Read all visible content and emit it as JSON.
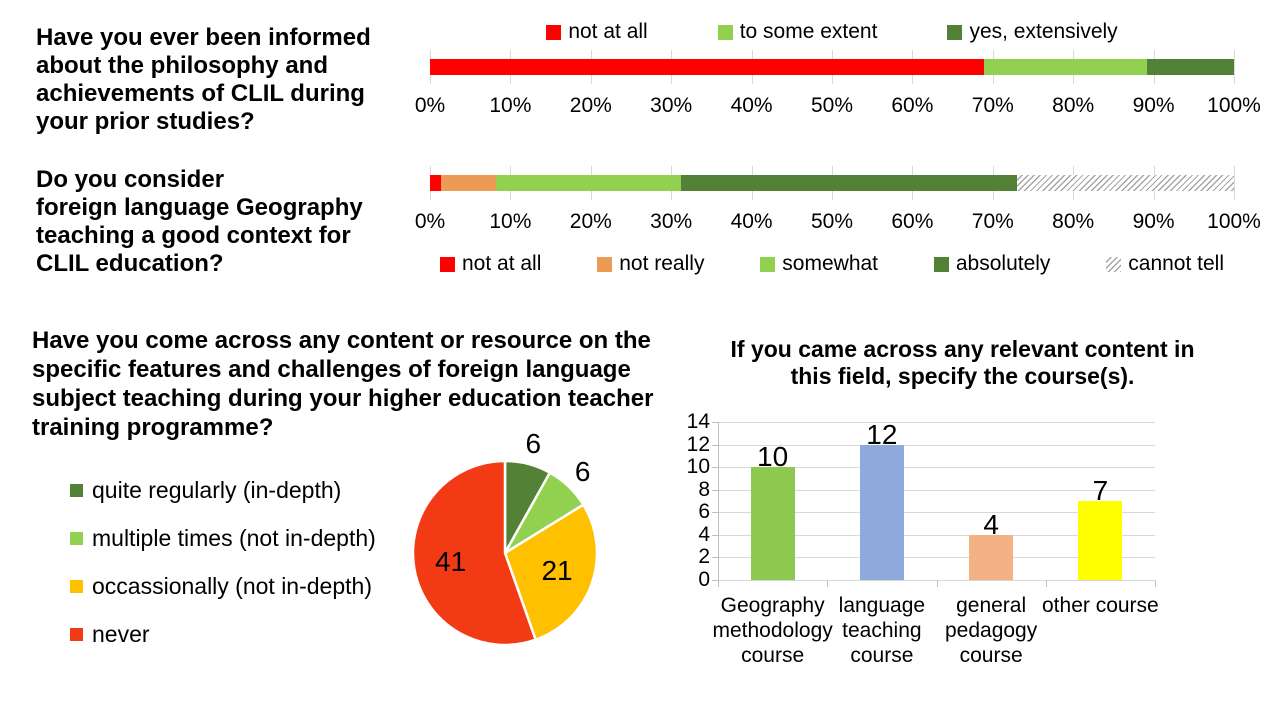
{
  "slide": {
    "questions": {
      "q1": "Have you ever been informed\nabout the philosophy and\nachievements of CLIL during\nyour prior studies?",
      "q2": "Do you consider\nforeign language Geography\nteaching a good context for\nCLIL education?",
      "q3": "Have you come across any content or resource on the\nspecific features and challenges of foreign language\nsubject teaching during your higher education teacher\ntraining programme?"
    }
  },
  "palette": {
    "red": "#fe0000",
    "orange": "#ed9b54",
    "light_green": "#92d050",
    "dark_green": "#538135",
    "gold": "#ffc000",
    "red_orange": "#f23b14",
    "bar_green": "#8dc94f",
    "bar_blue": "#8ea9db",
    "bar_peach": "#f4b183",
    "bar_yellow": "#ffff00",
    "gridline": "#d9d9d9"
  },
  "chart_data": [
    {
      "id": "informed-about-clil",
      "type": "stacked-bar-100",
      "question": "Have you ever been informed about the philosophy and achievements of CLIL during your prior studies?",
      "legend_position": "top",
      "xlim": [
        0,
        100
      ],
      "x_ticks": [
        "0%",
        "10%",
        "20%",
        "30%",
        "40%",
        "50%",
        "60%",
        "70%",
        "80%",
        "90%",
        "100%"
      ],
      "series": [
        {
          "name": "not at all",
          "percent": 68.9,
          "color": "#fe0000"
        },
        {
          "name": "to some extent",
          "percent": 20.3,
          "color": "#92d050"
        },
        {
          "name": "yes, extensively",
          "percent": 10.8,
          "color": "#538135"
        }
      ]
    },
    {
      "id": "good-context-for-clil",
      "type": "stacked-bar-100",
      "question": "Do you consider foreign language Geography teaching a good context for CLIL education?",
      "legend_position": "bottom",
      "xlim": [
        0,
        100
      ],
      "x_ticks": [
        "0%",
        "10%",
        "20%",
        "30%",
        "40%",
        "50%",
        "60%",
        "70%",
        "80%",
        "90%",
        "100%"
      ],
      "series": [
        {
          "name": "not at all",
          "percent": 1.4,
          "color": "#fe0000"
        },
        {
          "name": "not really",
          "percent": 6.8,
          "color": "#ed9b54"
        },
        {
          "name": "somewhat",
          "percent": 23.0,
          "color": "#92d050"
        },
        {
          "name": "absolutely",
          "percent": 41.8,
          "color": "#538135"
        },
        {
          "name": "cannot tell",
          "percent": 27.0,
          "color": "#ffffff",
          "pattern": "diagonal-hatch"
        }
      ]
    },
    {
      "id": "content-frequency-pie",
      "type": "pie",
      "question": "Have you come across any content or resource on the specific features and challenges of foreign language subject teaching during your higher education teacher training programme?",
      "start_angle": "top",
      "direction": "clockwise",
      "legend_position": "left",
      "slices": [
        {
          "name": "quite regularly (in-depth)",
          "value": 6,
          "color": "#538135"
        },
        {
          "name": "multiple times (not in-depth)",
          "value": 6,
          "color": "#92d050"
        },
        {
          "name": "occassionally (not in-depth)",
          "value": 21,
          "color": "#ffc000"
        },
        {
          "name": "never",
          "value": 41,
          "color": "#f23b14"
        }
      ]
    },
    {
      "id": "relevant-content-courses",
      "type": "bar",
      "title": "If you came across any relevant content in\nthis field, specify the course(s).",
      "categories": [
        "Geography methodology course",
        "language teaching course",
        "general pedagogy course",
        "other course"
      ],
      "categories_display": [
        "Geography\nmethodology\ncourse",
        "language\nteaching\ncourse",
        "general\npedagogy\ncourse",
        "other course"
      ],
      "values": [
        10,
        12,
        4,
        7
      ],
      "colors": [
        "#8dc94f",
        "#8ea9db",
        "#f4b183",
        "#ffff00"
      ],
      "ylim": [
        0,
        14
      ],
      "ytick_step": 2,
      "grid": true,
      "legend": "none"
    }
  ]
}
